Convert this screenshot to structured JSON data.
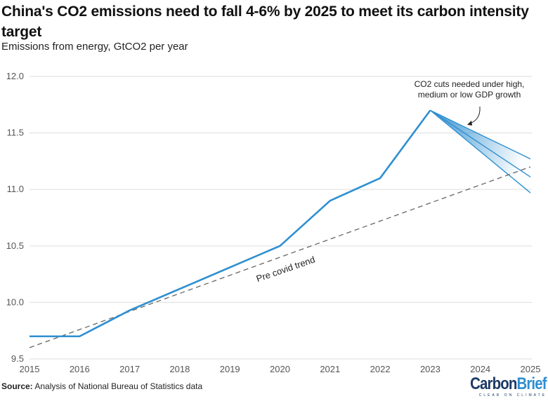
{
  "header": {
    "title": "China's CO2 emissions need to fall 4-6% by 2025 to meet its carbon intensity target",
    "subtitle": "Emissions from energy, GtCO2 per year"
  },
  "footer": {
    "source_label": "Source:",
    "source_text": " Analysis of National Bureau of Statistics data",
    "logo_part1": "Carbon",
    "logo_part2": "Brief",
    "logo_tagline": "CLEAR ON CLIMATE"
  },
  "colors": {
    "line": "#2e8fd0",
    "trend": "#666666",
    "grid": "#e3e3e3",
    "fan_fill": "#2e8fd0"
  },
  "chart_data": {
    "type": "line",
    "title": "China's CO2 emissions need to fall 4-6% by 2025 to meet its carbon intensity target",
    "subtitle": "Emissions from energy, GtCO2 per year",
    "xlabel": "",
    "ylabel": "GtCO2 per year",
    "xlim": [
      2015,
      2025
    ],
    "ylim": [
      9.5,
      12.0
    ],
    "grid": true,
    "x_ticks": [
      "2015",
      "2016",
      "2017",
      "2018",
      "2019",
      "2020",
      "2021",
      "2022",
      "2023",
      "2024",
      "2025"
    ],
    "y_ticks": [
      "9.5",
      "10.0",
      "10.5",
      "11.0",
      "11.5",
      "12.0"
    ],
    "series": [
      {
        "name": "Emissions from energy",
        "style": "solid",
        "x": [
          2015,
          2016,
          2017,
          2018,
          2019,
          2020,
          2021,
          2022,
          2023
        ],
        "values": [
          9.7,
          9.7,
          9.93,
          10.12,
          10.31,
          10.5,
          10.9,
          11.1,
          11.7
        ]
      },
      {
        "name": "Pre covid trend",
        "style": "dashed",
        "x": [
          2015,
          2025
        ],
        "values": [
          9.6,
          11.2
        ]
      },
      {
        "name": "High GDP growth pathway",
        "style": "projection",
        "x": [
          2023,
          2025
        ],
        "values": [
          11.7,
          11.27
        ]
      },
      {
        "name": "Medium GDP growth pathway",
        "style": "projection",
        "x": [
          2023,
          2025
        ],
        "values": [
          11.7,
          11.11
        ]
      },
      {
        "name": "Low GDP growth pathway",
        "style": "projection",
        "x": [
          2023,
          2025
        ],
        "values": [
          11.7,
          10.97
        ]
      }
    ],
    "annotations": [
      {
        "text_lines": [
          "CO2 cuts needed under high,",
          "medium or low GDP growth"
        ],
        "target": "projection fan"
      },
      {
        "text_lines": [
          "Pre covid trend"
        ],
        "target": "dashed trend line"
      }
    ],
    "legend": "none"
  }
}
